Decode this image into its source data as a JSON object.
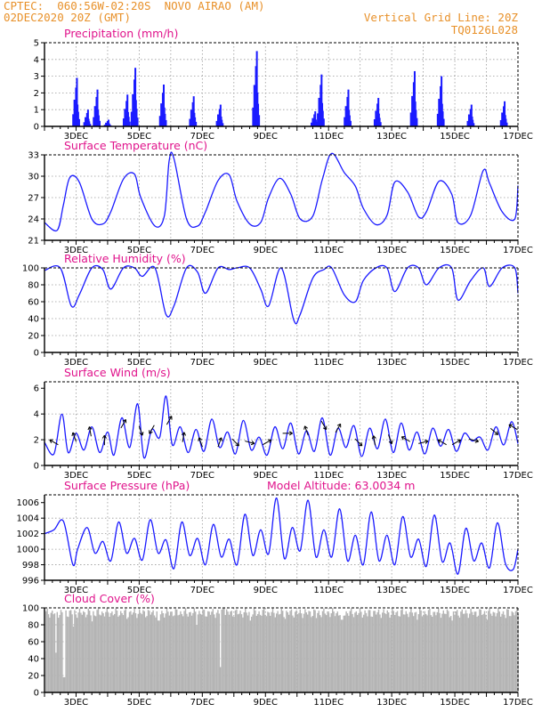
{
  "header": {
    "line1": "CPTEC:  060:56W-02:20S  NOVO AIRAO (AM)",
    "line2": "02DEC2020 20Z (GMT)",
    "grid_note": "Vertical Grid Line: 20Z",
    "code": "TQ0126L028"
  },
  "colors": {
    "header": "#e8912a",
    "title": "#e0148c",
    "series": "#1a1aff",
    "cloud": "#b4b4b4"
  },
  "chart_data": [
    {
      "id": "precip",
      "type": "bar",
      "title": "Precipitation (mm/h)",
      "ylim": [
        0,
        5
      ],
      "yticks": [
        0,
        1,
        2,
        3,
        4,
        5
      ],
      "xlabels": [
        "3DEC",
        "5DEC",
        "7DEC",
        "9DEC",
        "11DEC",
        "13DEC",
        "15DEC",
        "17DEC"
      ],
      "events": [
        {
          "day": 3.0,
          "peak": 2.9
        },
        {
          "day": 3.35,
          "peak": 1.0
        },
        {
          "day": 3.65,
          "peak": 2.2
        },
        {
          "day": 4.0,
          "peak": 0.4
        },
        {
          "day": 4.6,
          "peak": 1.9
        },
        {
          "day": 4.85,
          "peak": 3.5
        },
        {
          "day": 5.75,
          "peak": 2.5
        },
        {
          "day": 6.7,
          "peak": 1.8
        },
        {
          "day": 7.55,
          "peak": 1.3
        },
        {
          "day": 8.7,
          "peak": 4.5
        },
        {
          "day": 10.55,
          "peak": 0.9
        },
        {
          "day": 10.75,
          "peak": 3.1
        },
        {
          "day": 11.6,
          "peak": 2.2
        },
        {
          "day": 12.55,
          "peak": 1.7
        },
        {
          "day": 13.7,
          "peak": 3.3
        },
        {
          "day": 14.55,
          "peak": 3.0
        },
        {
          "day": 15.5,
          "peak": 1.3
        },
        {
          "day": 16.55,
          "peak": 1.5
        }
      ]
    },
    {
      "id": "temp",
      "type": "line",
      "title": "Surface Temperature (nC)",
      "ylim": [
        21,
        33
      ],
      "yticks": [
        21,
        24,
        27,
        30,
        33
      ],
      "xlabels": [
        "3DEC",
        "5DEC",
        "7DEC",
        "9DEC",
        "11DEC",
        "13DEC",
        "15DEC",
        "17DEC"
      ],
      "x": [
        2.0,
        2.4,
        2.6,
        2.8,
        3.1,
        3.5,
        3.85,
        4.1,
        4.5,
        4.85,
        5.05,
        5.5,
        5.8,
        5.95,
        6.1,
        6.5,
        6.85,
        7.1,
        7.5,
        7.85,
        8.1,
        8.5,
        8.85,
        9.1,
        9.45,
        9.8,
        10.1,
        10.5,
        10.8,
        11.1,
        11.5,
        11.85,
        12.1,
        12.5,
        12.85,
        13.1,
        13.5,
        13.85,
        14.1,
        14.5,
        14.9,
        15.1,
        15.5,
        15.9,
        16.1,
        16.5,
        16.9,
        17.0
      ],
      "y": [
        23.5,
        22.4,
        26,
        29.8,
        29.2,
        24,
        23.3,
        25,
        29.6,
        30.3,
        27,
        23,
        24.5,
        32.2,
        32.5,
        24,
        23,
        25,
        29.4,
        30.2,
        26.5,
        23.3,
        23.5,
        27,
        29.7,
        27.5,
        24,
        24.4,
        29.5,
        33.2,
        30.5,
        28.6,
        25.5,
        23.2,
        24.5,
        29.2,
        27.8,
        24.3,
        25,
        29.3,
        27.5,
        23.5,
        24.5,
        30.8,
        29,
        25,
        24,
        28.7
      ]
    },
    {
      "id": "rh",
      "type": "line",
      "title": "Relative Humidity (%)",
      "ylim": [
        0,
        100
      ],
      "yticks": [
        0,
        20,
        40,
        60,
        80,
        100
      ],
      "xlabels": [
        "3DEC",
        "5DEC",
        "7DEC",
        "9DEC",
        "11DEC",
        "13DEC",
        "15DEC",
        "17DEC"
      ],
      "x": [
        2.0,
        2.5,
        2.85,
        3.1,
        3.5,
        3.85,
        4.1,
        4.5,
        4.85,
        5.1,
        5.5,
        5.85,
        6.1,
        6.5,
        6.85,
        7.1,
        7.5,
        7.85,
        8.1,
        8.5,
        8.85,
        9.1,
        9.5,
        9.9,
        10.1,
        10.5,
        10.85,
        11.1,
        11.5,
        11.85,
        12.1,
        12.5,
        12.85,
        13.1,
        13.5,
        13.85,
        14.1,
        14.5,
        14.9,
        15.1,
        15.5,
        15.9,
        16.1,
        16.5,
        16.9,
        17.0
      ],
      "y": [
        97,
        100,
        55,
        68,
        100,
        98,
        75,
        100,
        100,
        90,
        100,
        45,
        55,
        100,
        95,
        70,
        100,
        98,
        100,
        100,
        75,
        55,
        100,
        38,
        45,
        88,
        98,
        100,
        68,
        60,
        85,
        100,
        100,
        72,
        100,
        100,
        80,
        100,
        100,
        62,
        85,
        100,
        78,
        100,
        100,
        70
      ]
    },
    {
      "id": "wind",
      "type": "line",
      "title": "Surface Wind (m/s)",
      "ylim": [
        0,
        6.5
      ],
      "yticks": [
        0,
        2,
        4,
        6
      ],
      "xlabels": [
        "3DEC",
        "5DEC",
        "7DEC",
        "9DEC",
        "11DEC",
        "13DEC",
        "15DEC",
        "17DEC"
      ],
      "x": [
        2.0,
        2.3,
        2.55,
        2.75,
        3.0,
        3.25,
        3.5,
        3.75,
        4.0,
        4.2,
        4.45,
        4.7,
        4.95,
        5.15,
        5.4,
        5.65,
        5.85,
        6.05,
        6.3,
        6.55,
        6.8,
        7.05,
        7.3,
        7.55,
        7.8,
        8.05,
        8.3,
        8.55,
        8.8,
        9.05,
        9.3,
        9.55,
        9.8,
        10.05,
        10.3,
        10.55,
        10.8,
        11.05,
        11.3,
        11.55,
        11.8,
        12.05,
        12.3,
        12.55,
        12.8,
        13.05,
        13.3,
        13.55,
        13.8,
        14.05,
        14.3,
        14.55,
        14.8,
        15.05,
        15.3,
        15.55,
        15.8,
        16.05,
        16.3,
        16.55,
        16.8,
        17.0
      ],
      "y": [
        1.8,
        0.9,
        4.0,
        1.0,
        2.5,
        1.2,
        3.0,
        1.0,
        2.6,
        0.8,
        3.7,
        1.4,
        4.8,
        0.6,
        2.8,
        2.2,
        5.4,
        1.6,
        3.0,
        1.0,
        2.8,
        1.1,
        3.6,
        1.4,
        2.6,
        0.9,
        3.5,
        1.2,
        2.2,
        0.8,
        3.0,
        1.3,
        3.3,
        0.9,
        2.7,
        1.1,
        3.7,
        0.8,
        2.9,
        1.4,
        3.1,
        0.7,
        2.9,
        1.3,
        3.6,
        1.0,
        3.3,
        1.2,
        2.6,
        0.9,
        2.9,
        1.5,
        2.8,
        1.1,
        2.5,
        1.9,
        2.2,
        1.2,
        3.0,
        1.6,
        3.4,
        1.7
      ],
      "arrows": [
        {
          "day": 2.3,
          "dir": -150
        },
        {
          "day": 2.95,
          "dir": -110
        },
        {
          "day": 3.45,
          "dir": -100
        },
        {
          "day": 3.9,
          "dir": -90
        },
        {
          "day": 4.5,
          "dir": -60
        },
        {
          "day": 5.05,
          "dir": 70
        },
        {
          "day": 5.4,
          "dir": 120
        },
        {
          "day": 5.95,
          "dir": -60
        },
        {
          "day": 6.4,
          "dir": -80
        },
        {
          "day": 6.95,
          "dir": -110
        },
        {
          "day": 7.55,
          "dir": -70
        },
        {
          "day": 8.05,
          "dir": 45
        },
        {
          "day": 8.5,
          "dir": 15
        },
        {
          "day": 9.05,
          "dir": -30
        },
        {
          "day": 9.7,
          "dir": 0
        },
        {
          "day": 10.3,
          "dir": -110
        },
        {
          "day": 10.85,
          "dir": 60
        },
        {
          "day": 11.3,
          "dir": -60
        },
        {
          "day": 11.95,
          "dir": 45
        },
        {
          "day": 12.45,
          "dir": -100
        },
        {
          "day": 12.95,
          "dir": 70
        },
        {
          "day": 13.45,
          "dir": -150
        },
        {
          "day": 14.0,
          "dir": -15
        },
        {
          "day": 14.6,
          "dir": -150
        },
        {
          "day": 15.05,
          "dir": -30
        },
        {
          "day": 15.6,
          "dir": 15
        },
        {
          "day": 16.25,
          "dir": 40
        },
        {
          "day": 16.85,
          "dir": -150
        }
      ]
    },
    {
      "id": "press",
      "type": "line",
      "title": "Surface Pressure (hPa)",
      "annotation": "Model Altitude: 63.0034 m",
      "ylim": [
        996,
        1007
      ],
      "yticks": [
        996,
        998,
        1000,
        1002,
        1004,
        1006
      ],
      "xlabels": [
        "3DEC",
        "5DEC",
        "7DEC",
        "9DEC",
        "11DEC",
        "13DEC",
        "15DEC",
        "17DEC"
      ],
      "x": [
        2.0,
        2.3,
        2.6,
        2.9,
        3.05,
        3.35,
        3.6,
        3.85,
        4.1,
        4.35,
        4.6,
        4.85,
        5.1,
        5.35,
        5.6,
        5.85,
        6.1,
        6.35,
        6.6,
        6.85,
        7.1,
        7.35,
        7.6,
        7.85,
        8.1,
        8.35,
        8.6,
        8.85,
        9.1,
        9.35,
        9.6,
        9.85,
        10.1,
        10.35,
        10.6,
        10.85,
        11.1,
        11.35,
        11.6,
        11.85,
        12.1,
        12.35,
        12.6,
        12.85,
        13.1,
        13.35,
        13.6,
        13.85,
        14.1,
        14.35,
        14.6,
        14.85,
        15.1,
        15.35,
        15.6,
        15.85,
        16.1,
        16.35,
        16.6,
        16.85,
        17.0
      ],
      "y": [
        1002,
        1002.5,
        1003.6,
        998,
        1000,
        1002.8,
        999.5,
        1001,
        998.5,
        1003.5,
        999.5,
        1001.4,
        998.6,
        1003.8,
        999.5,
        1001.2,
        997.5,
        1003.5,
        999.2,
        1001.4,
        998,
        1003.2,
        999,
        1001.3,
        998,
        1004.5,
        999.2,
        1002.5,
        999.4,
        1006.6,
        998.8,
        1002.8,
        999.8,
        1006.3,
        999,
        1002.5,
        999,
        1005.2,
        998.5,
        1001.8,
        998,
        1004.8,
        998.5,
        1001.8,
        998,
        1004.2,
        999,
        1001.3,
        997.8,
        1004.4,
        998.4,
        1000.8,
        996.8,
        1002.7,
        998.5,
        1000.8,
        997.6,
        1003.4,
        998.2,
        997.4,
        1000
      ]
    },
    {
      "id": "cloud",
      "type": "bar",
      "title": "Cloud Cover (%)",
      "ylim": [
        0,
        100
      ],
      "yticks": [
        0,
        20,
        40,
        60,
        80,
        100
      ],
      "xlabels": [
        "3DEC",
        "5DEC",
        "7DEC",
        "9DEC",
        "11DEC",
        "13DEC",
        "15DEC",
        "17DEC"
      ],
      "baseline": 94,
      "dips": [
        {
          "day": 2.35,
          "value": 47
        },
        {
          "day": 2.6,
          "value": 18
        },
        {
          "day": 2.9,
          "value": 78
        },
        {
          "day": 3.5,
          "value": 84
        },
        {
          "day": 4.6,
          "value": 87
        },
        {
          "day": 5.6,
          "value": 85
        },
        {
          "day": 6.8,
          "value": 80
        },
        {
          "day": 7.55,
          "value": 30
        },
        {
          "day": 7.65,
          "value": 100
        },
        {
          "day": 8.5,
          "value": 85
        },
        {
          "day": 9.6,
          "value": 87
        },
        {
          "day": 10.6,
          "value": 88
        },
        {
          "day": 11.4,
          "value": 86
        },
        {
          "day": 12.2,
          "value": 90
        },
        {
          "day": 13.8,
          "value": 86
        },
        {
          "day": 14.9,
          "value": 85
        },
        {
          "day": 16.0,
          "value": 86
        },
        {
          "day": 16.6,
          "value": 88
        }
      ]
    }
  ]
}
